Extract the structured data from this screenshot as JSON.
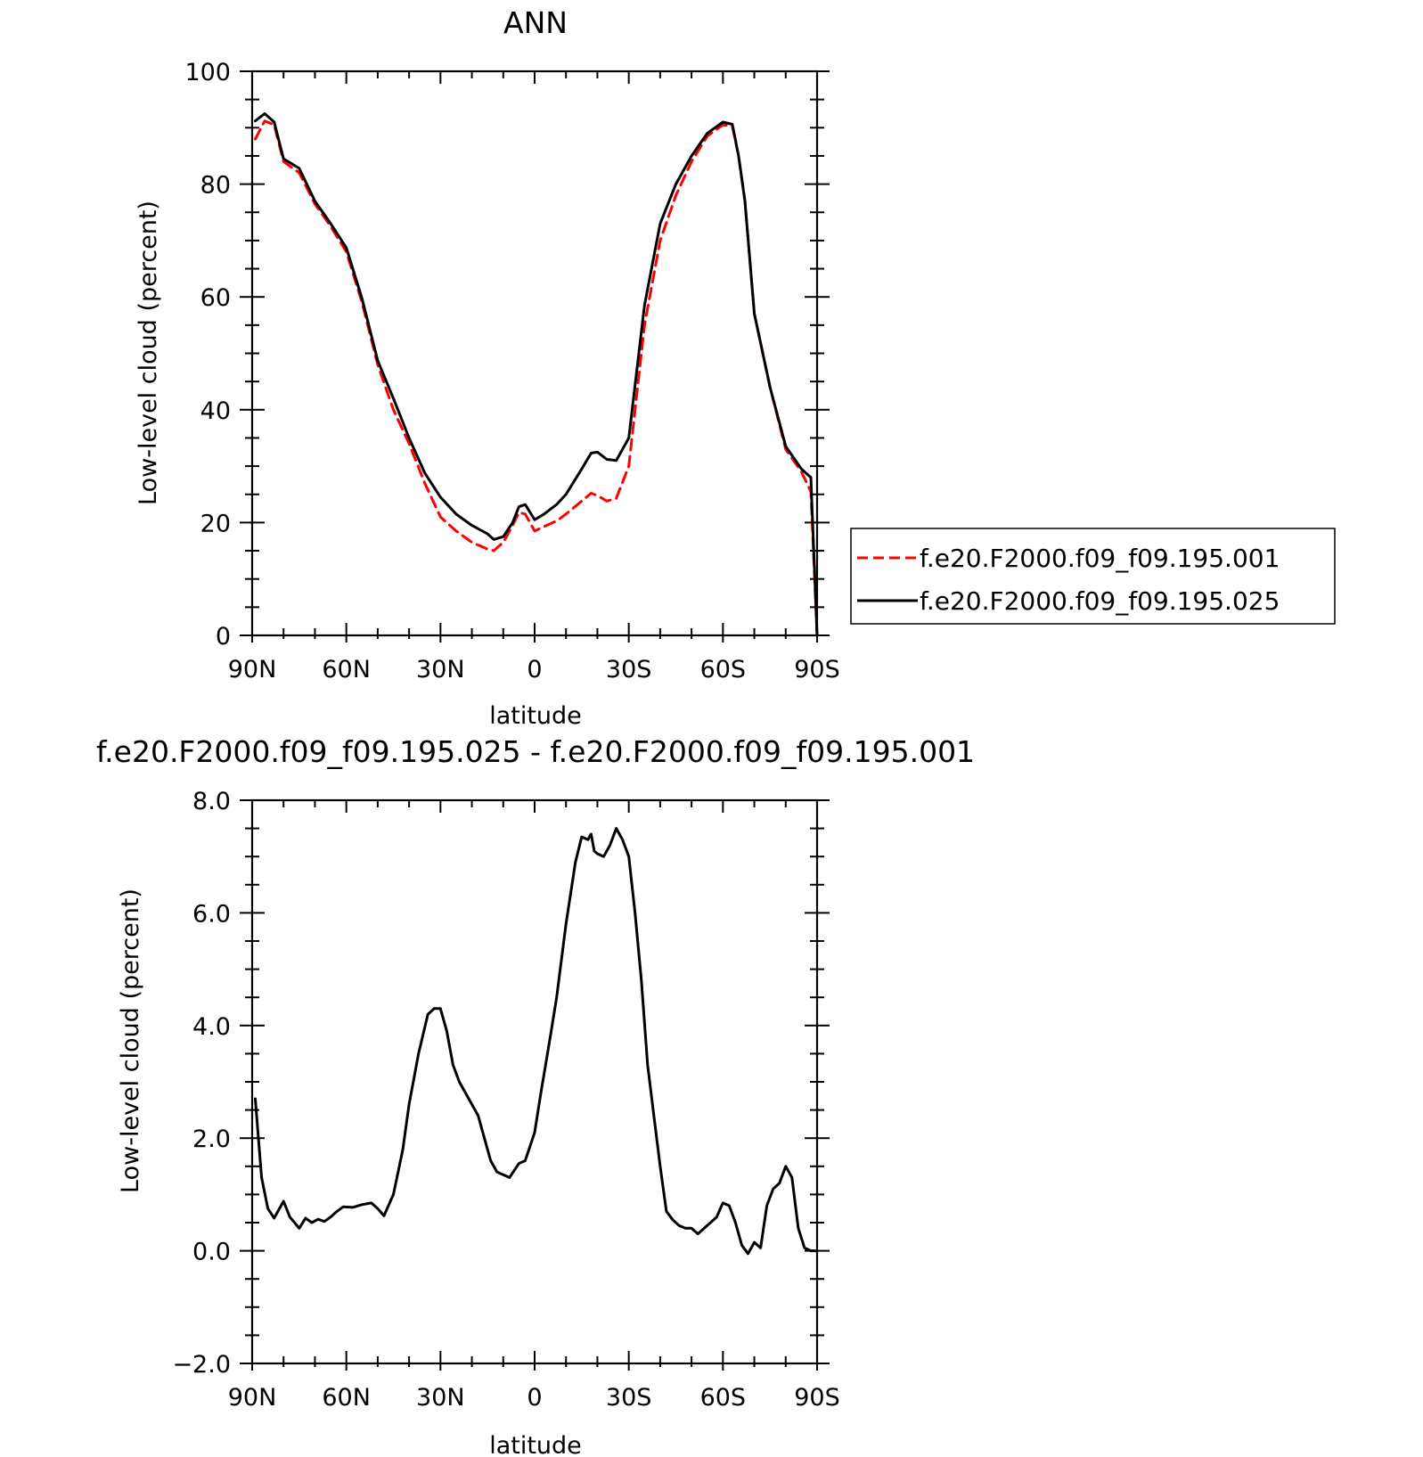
{
  "chart_data": [
    {
      "type": "line",
      "title": "ANN",
      "xlabel": "latitude",
      "ylabel": "Low-level cloud (percent)",
      "xlim": [
        90,
        -90
      ],
      "ylim": [
        0,
        100
      ],
      "xticks": [
        90,
        60,
        30,
        0,
        -30,
        -60,
        -90
      ],
      "xtick_labels": [
        "90N",
        "60N",
        "30N",
        "0",
        "30S",
        "60S",
        "90S"
      ],
      "yticks": [
        0,
        20,
        40,
        60,
        80,
        100
      ],
      "ytick_labels": [
        "0",
        "20",
        "40",
        "60",
        "80",
        "100"
      ],
      "legend_position": "right",
      "x": [
        89,
        86,
        83,
        80,
        75,
        70,
        65,
        60,
        55,
        50,
        45,
        40,
        35,
        30,
        25,
        20,
        15,
        13,
        10,
        7,
        5,
        3,
        0,
        -3,
        -7,
        -10,
        -15,
        -18,
        -20,
        -23,
        -26,
        -30,
        -35,
        -40,
        -45,
        -50,
        -55,
        -60,
        -63,
        -65,
        -67,
        -70,
        -75,
        -80,
        -85,
        -88,
        -90
      ],
      "series": [
        {
          "name": "f.e20.F2000.f09_f09.195.001",
          "color": "#ff0000",
          "dash": "dashed",
          "values": [
            88.0,
            91.2,
            90.5,
            84.0,
            82.0,
            76.5,
            72.5,
            68.0,
            59.0,
            48.0,
            40.0,
            34.0,
            27.0,
            21.0,
            18.5,
            16.5,
            15.3,
            15.0,
            16.5,
            19.5,
            21.8,
            21.5,
            18.5,
            19.3,
            20.3,
            21.5,
            23.8,
            25.2,
            24.8,
            23.8,
            24.3,
            30.0,
            55.0,
            70.0,
            78.0,
            84.0,
            88.5,
            90.5,
            90.2,
            85.0,
            77.0,
            57.0,
            44.0,
            33.0,
            29.0,
            25.5,
            0.0
          ]
        },
        {
          "name": "f.e20.F2000.f09_f09.195.025",
          "color": "#000000",
          "dash": "solid",
          "values": [
            91.2,
            92.5,
            91.0,
            84.5,
            82.8,
            77.0,
            73.0,
            68.7,
            59.7,
            48.7,
            42.0,
            35.0,
            28.8,
            24.5,
            21.5,
            19.5,
            18.0,
            17.0,
            17.5,
            20.0,
            22.8,
            23.2,
            20.5,
            21.5,
            23.2,
            25.0,
            29.5,
            32.3,
            32.5,
            31.2,
            31.0,
            35.0,
            58.5,
            73.0,
            80.0,
            85.0,
            89.0,
            91.0,
            90.6,
            85.0,
            77.0,
            57.0,
            44.0,
            33.5,
            29.5,
            28.0,
            0.0
          ]
        }
      ]
    },
    {
      "type": "line",
      "title": "f.e20.F2000.f09_f09.195.025 - f.e20.F2000.f09_f09.195.001",
      "xlabel": "latitude",
      "ylabel": "Low-level cloud (percent)",
      "xlim": [
        90,
        -90
      ],
      "ylim": [
        -2,
        8
      ],
      "xticks": [
        90,
        60,
        30,
        0,
        -30,
        -60,
        -90
      ],
      "xtick_labels": [
        "90N",
        "60N",
        "30N",
        "0",
        "30S",
        "60S",
        "90S"
      ],
      "yticks": [
        -2,
        0,
        2,
        4,
        6,
        8
      ],
      "ytick_labels": [
        "−2.0",
        "0.0",
        "2.0",
        "4.0",
        "6.0",
        "8.0"
      ],
      "x": [
        89,
        88,
        87,
        85,
        83,
        80,
        78,
        75,
        73,
        71,
        69,
        67,
        65,
        63,
        61,
        58,
        55,
        52,
        50,
        48,
        45,
        42,
        40,
        37,
        34,
        32,
        30,
        28,
        26,
        24,
        22,
        20,
        18,
        16,
        14,
        12,
        10,
        8,
        5,
        3,
        0,
        -2,
        -5,
        -7,
        -10,
        -13,
        -15,
        -17,
        -18,
        -19,
        -20,
        -22,
        -24,
        -26,
        -28,
        -30,
        -32,
        -34,
        -36,
        -38,
        -40,
        -42,
        -44,
        -46,
        -48,
        -50,
        -52,
        -55,
        -58,
        -60,
        -62,
        -64,
        -66,
        -68,
        -70,
        -72,
        -74,
        -76,
        -78,
        -80,
        -82,
        -84,
        -86,
        -88,
        -89.5
      ],
      "series": [
        {
          "name": "",
          "color": "#000000",
          "dash": "solid",
          "values": [
            2.7,
            2.0,
            1.3,
            0.75,
            0.58,
            0.88,
            0.6,
            0.4,
            0.58,
            0.5,
            0.56,
            0.52,
            0.6,
            0.7,
            0.78,
            0.77,
            0.82,
            0.85,
            0.75,
            0.62,
            1.0,
            1.8,
            2.6,
            3.5,
            4.2,
            4.3,
            4.3,
            3.9,
            3.3,
            3.0,
            2.8,
            2.6,
            2.4,
            2.0,
            1.6,
            1.4,
            1.35,
            1.3,
            1.55,
            1.6,
            2.1,
            2.8,
            3.8,
            4.5,
            5.8,
            6.9,
            7.35,
            7.3,
            7.4,
            7.1,
            7.05,
            7.0,
            7.2,
            7.5,
            7.3,
            7.0,
            6.0,
            4.8,
            3.3,
            2.4,
            1.5,
            0.7,
            0.55,
            0.45,
            0.4,
            0.4,
            0.3,
            0.45,
            0.6,
            0.85,
            0.8,
            0.5,
            0.1,
            -0.05,
            0.15,
            0.05,
            0.8,
            1.1,
            1.2,
            1.5,
            1.3,
            0.4,
            0.05,
            0.0,
            0.0
          ]
        }
      ]
    }
  ],
  "legend": {
    "items": [
      {
        "label": "f.e20.F2000.f09_f09.195.001",
        "color": "#ff0000",
        "dash": "dashed"
      },
      {
        "label": "f.e20.F2000.f09_f09.195.025",
        "color": "#000000",
        "dash": "solid"
      }
    ]
  }
}
